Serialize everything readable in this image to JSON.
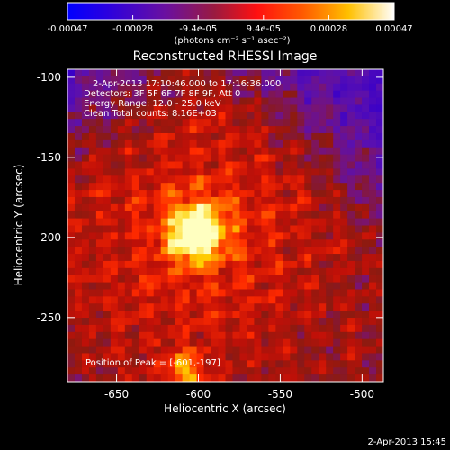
{
  "colorbar": {
    "tick_labels": [
      "-0.00047",
      "-0.00028",
      "-9.4e-05",
      "9.4e-05",
      "0.00028",
      "0.00047"
    ],
    "units_label": "(photons cm⁻² s⁻¹ asec⁻²)",
    "range": [
      -0.00047,
      0.00047
    ]
  },
  "title": "Reconstructed RHESSI Image",
  "annotations": {
    "time_range": "2-Apr-2013 17:10:46.000 to 17:16:36.000",
    "detectors": "Detectors: 3F 5F 6F 7F 8F 9F, Att 0",
    "energy": "Energy Range: 12.0 - 25.0 keV",
    "clean": "Clean     Total counts: 8.16E+03",
    "peak": "Position of Peak = [-601,-197]"
  },
  "footer_timestamp": "2-Apr-2013 15:45",
  "chart_data": {
    "type": "heatmap",
    "title": "Reconstructed RHESSI Image",
    "xlabel": "Heliocentric X (arcsec)",
    "ylabel": "Heliocentric Y (arcsec)",
    "xlim": [
      -680,
      -487
    ],
    "ylim": [
      -290,
      -95
    ],
    "x_ticks": [
      -650,
      -600,
      -550,
      -500
    ],
    "y_ticks": [
      -100,
      -150,
      -200,
      -250
    ],
    "x_tick_labels": [
      "-650",
      "-600",
      "-550",
      "-500"
    ],
    "y_tick_labels": [
      "-100",
      "-150",
      "-200",
      "-250"
    ],
    "value_range": [
      -0.00047,
      0.00047
    ],
    "peak_position": [
      -601,
      -197
    ],
    "colors": [
      "#0000ff",
      "#5a00b4",
      "#9a1a0a",
      "#ff0000",
      "#ff8a00",
      "#ffff9a",
      "#ffffff"
    ]
  }
}
